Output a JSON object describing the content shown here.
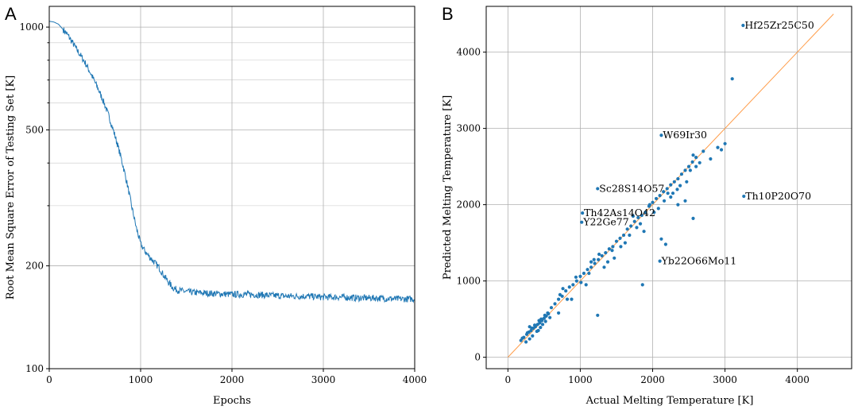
{
  "chart_data": [
    {
      "panel": "A",
      "type": "line",
      "title": "",
      "xlabel": "Epochs",
      "ylabel": "Root Mean Square Error of Testing Set [K]",
      "xlim": [
        0,
        4000
      ],
      "ylim": [
        100,
        1150
      ],
      "yscale": "log",
      "grid": true,
      "xticks": [
        0,
        1000,
        2000,
        3000,
        4000
      ],
      "xtick_labels": [
        "0",
        "1000",
        "2000",
        "3000",
        "4000"
      ],
      "yticks": [
        100,
        200,
        500,
        1000
      ],
      "ytick_labels": [
        "100",
        "200",
        "500",
        "1000"
      ],
      "yminor_ticks": [
        300,
        400,
        600,
        700,
        800,
        900
      ],
      "color": "#1f77b4",
      "series": [
        {
          "name": "RMSE",
          "x": [
            0,
            50,
            100,
            200,
            300,
            400,
            500,
            600,
            700,
            800,
            850,
            900,
            950,
            1000,
            1050,
            1100,
            1150,
            1200,
            1250,
            1300,
            1350,
            1400,
            1500,
            1600,
            1800,
            2000,
            2200,
            2400,
            2600,
            2800,
            3000,
            3200,
            3400,
            3600,
            3800,
            4000
          ],
          "values": [
            1040,
            1035,
            1020,
            950,
            860,
            780,
            690,
            600,
            500,
            400,
            350,
            300,
            260,
            232,
            220,
            212,
            205,
            198,
            188,
            180,
            173,
            170,
            168,
            167,
            166,
            165,
            165,
            164,
            163,
            163,
            162,
            162,
            161,
            161,
            160,
            160
          ]
        }
      ]
    },
    {
      "panel": "B",
      "type": "scatter",
      "title": "",
      "xlabel": "Actual Melting Temperature [K]",
      "ylabel": "Predicted Melting Temperature [K]",
      "xlim": [
        -300,
        4750
      ],
      "ylim": [
        -150,
        4600
      ],
      "grid": true,
      "xticks": [
        0,
        1000,
        2000,
        3000,
        4000
      ],
      "xtick_labels": [
        "0",
        "1000",
        "2000",
        "3000",
        "4000"
      ],
      "yticks": [
        0,
        1000,
        2000,
        3000,
        4000
      ],
      "ytick_labels": [
        "0",
        "1000",
        "2000",
        "3000",
        "4000"
      ],
      "point_color": "#1f77b4",
      "identity_line": {
        "from": [
          0,
          0
        ],
        "to": [
          4500,
          4500
        ],
        "color": "#ff9d4a"
      },
      "points_x": [
        180,
        220,
        260,
        290,
        320,
        350,
        380,
        410,
        440,
        470,
        500,
        530,
        560,
        250,
        300,
        340,
        400,
        450,
        480,
        520,
        200,
        270,
        330,
        370,
        430,
        460,
        510,
        550,
        600,
        650,
        700,
        750,
        800,
        850,
        900,
        950,
        1000,
        1050,
        1100,
        1150,
        1200,
        1250,
        1300,
        1350,
        1400,
        1450,
        1500,
        1550,
        1600,
        1650,
        1700,
        1750,
        1800,
        1850,
        1900,
        1950,
        2000,
        2050,
        2100,
        2150,
        2200,
        2250,
        2300,
        2350,
        2400,
        2450,
        2500,
        2550,
        2600,
        2700,
        2900,
        3000,
        3100,
        720,
        880,
        1010,
        1120,
        1260,
        1380,
        1470,
        1620,
        1780,
        1880,
        2020,
        2160,
        2280,
        2380,
        2520,
        2650,
        2800,
        2950,
        300,
        420,
        580,
        700,
        760,
        820,
        940,
        1080,
        1190,
        1330,
        1440,
        1560,
        1680,
        1730,
        1830,
        1960,
        2080,
        2210,
        2340,
        2470,
        2560,
        2120,
        2180,
        2250,
        2350,
        2450,
        2560,
        1150,
        1240,
        1860,
        2600
      ],
      "points_y": [
        220,
        260,
        300,
        330,
        350,
        380,
        400,
        430,
        450,
        480,
        510,
        540,
        570,
        200,
        240,
        280,
        340,
        390,
        430,
        470,
        250,
        320,
        380,
        420,
        480,
        500,
        550,
        580,
        650,
        700,
        760,
        800,
        870,
        920,
        950,
        1000,
        1060,
        1100,
        1150,
        1180,
        1230,
        1280,
        1330,
        1370,
        1420,
        1450,
        1520,
        1560,
        1600,
        1680,
        1720,
        1780,
        1830,
        1860,
        1900,
        1980,
        2030,
        2080,
        2120,
        2170,
        2210,
        2260,
        2300,
        2340,
        2400,
        2450,
        2500,
        2560,
        2620,
        2700,
        2750,
        2800,
        3650,
        820,
        760,
        980,
        1100,
        1350,
        1250,
        1300,
        1500,
        1700,
        1650,
        1900,
        2050,
        2150,
        2250,
        2450,
        2550,
        2600,
        2720,
        400,
        350,
        520,
        580,
        900,
        760,
        1050,
        950,
        1280,
        1180,
        1400,
        1450,
        1600,
        1850,
        1750,
        2000,
        1950,
        2150,
        2200,
        2300,
        2650,
        1550,
        1480,
        2100,
        2000,
        2050,
        1820,
        1250,
        550,
        950,
        2500
      ],
      "annotations": [
        {
          "text": "Hf25Zr25C50",
          "x": 3250,
          "y": 4350
        },
        {
          "text": "W69Ir30",
          "x": 2120,
          "y": 2910
        },
        {
          "text": "Sc28S14O57",
          "x": 1240,
          "y": 2210
        },
        {
          "text": "Th10P20O70",
          "x": 3260,
          "y": 2110
        },
        {
          "text": "Th42As14O42",
          "x": 1030,
          "y": 1890
        },
        {
          "text": "Y22Ge77",
          "x": 1020,
          "y": 1770
        },
        {
          "text": "Yb22O66Mo11",
          "x": 2100,
          "y": 1260
        }
      ]
    }
  ]
}
